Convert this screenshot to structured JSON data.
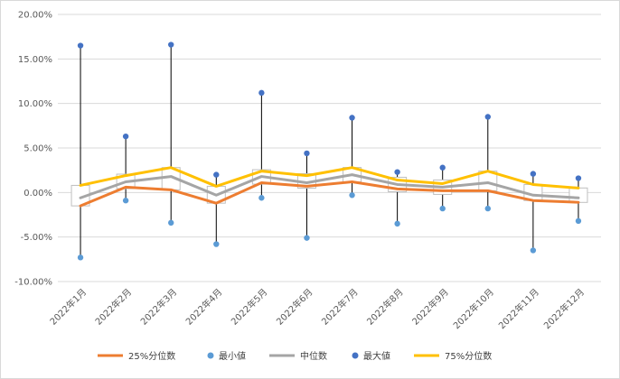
{
  "chart_data": {
    "type": "line",
    "categories": [
      "2022年1月",
      "2022年2月",
      "2022年3月",
      "2022年4月",
      "2022年5月",
      "2022年6月",
      "2022年7月",
      "2022年8月",
      "2022年9月",
      "2022年10月",
      "2022年11月",
      "2022年12月"
    ],
    "ylim": [
      -10,
      20
    ],
    "y_unit": "%",
    "y_ticks": [
      "20.00%",
      "15.00%",
      "10.00%",
      "5.00%",
      "0.00%",
      "-5.00%",
      "-10.00%"
    ],
    "grid": true,
    "legend_position": "bottom",
    "series": [
      {
        "name": "25%分位数",
        "color": "#ed7d31",
        "marker": "line",
        "values": [
          -1.5,
          0.6,
          0.3,
          -1.2,
          1.1,
          0.7,
          1.2,
          0.4,
          0.2,
          0.2,
          -0.9,
          -1.1
        ]
      },
      {
        "name": "最小値",
        "color": "#5b9bd5",
        "marker": "dot",
        "values": [
          -7.3,
          -0.9,
          -3.4,
          -5.8,
          -0.6,
          -5.1,
          -0.3,
          -3.5,
          -1.8,
          -1.8,
          -6.5,
          -3.2
        ]
      },
      {
        "name": "中位数",
        "color": "#a5a5a5",
        "marker": "line",
        "values": [
          -0.6,
          1.2,
          1.8,
          -0.3,
          1.8,
          1.1,
          2.0,
          0.9,
          0.6,
          1.1,
          -0.3,
          -0.6
        ]
      },
      {
        "name": "最大値",
        "color": "#4472c4",
        "marker": "dot",
        "values": [
          16.5,
          6.3,
          16.6,
          2.0,
          11.2,
          4.4,
          8.4,
          2.3,
          2.8,
          8.5,
          2.1,
          1.6
        ]
      },
      {
        "name": "75%分位数",
        "color": "#ffc000",
        "marker": "line",
        "values": [
          0.8,
          1.9,
          2.8,
          0.7,
          2.4,
          1.9,
          2.8,
          1.4,
          1.0,
          2.4,
          0.9,
          0.5
        ]
      }
    ]
  }
}
